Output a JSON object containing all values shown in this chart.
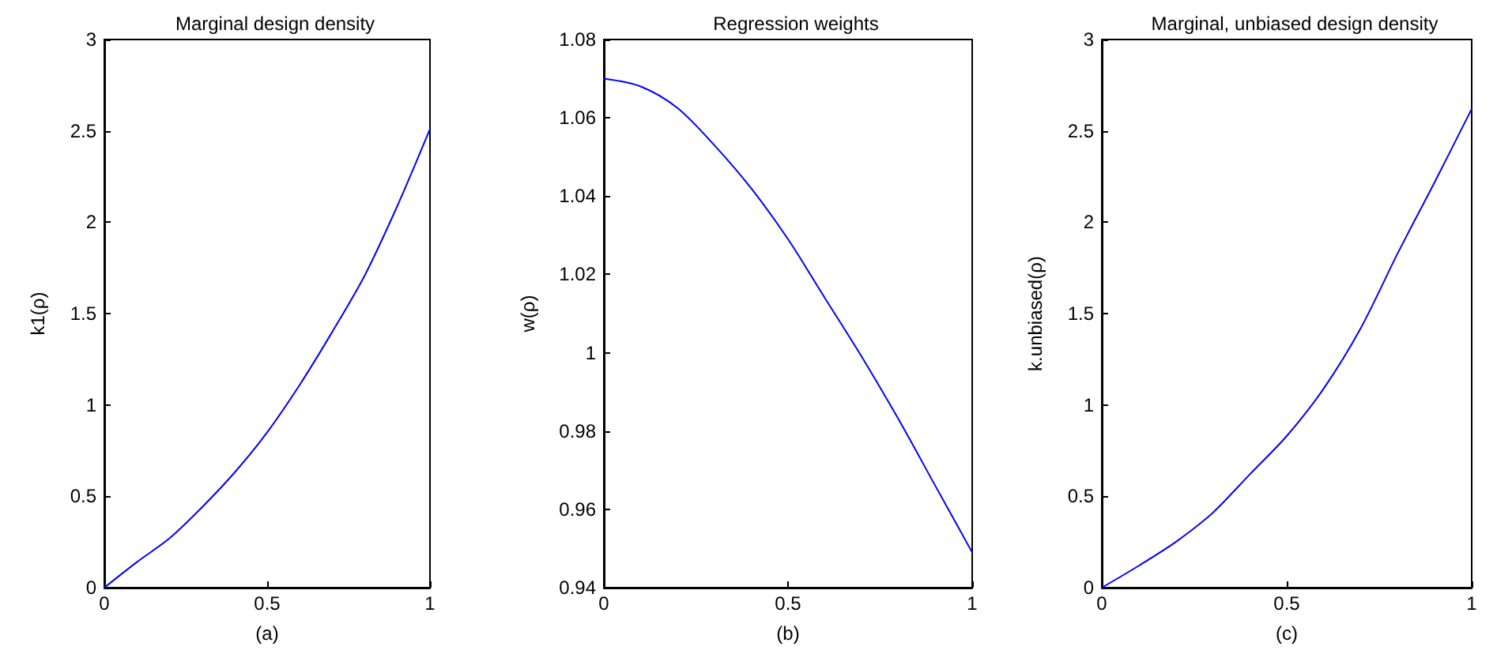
{
  "chart_data": [
    {
      "type": "line",
      "title": "Marginal design density",
      "xlabel": "(a)",
      "ylabel": "k1(ρ)",
      "x": [
        0,
        0.1,
        0.2,
        0.3,
        0.4,
        0.5,
        0.6,
        0.7,
        0.8,
        0.9,
        1
      ],
      "series": [
        {
          "color": "#0000ff",
          "values": [
            0,
            0.14,
            0.27,
            0.44,
            0.63,
            0.85,
            1.11,
            1.4,
            1.71,
            2.09,
            2.51
          ]
        }
      ],
      "xlim": [
        0,
        1
      ],
      "xticks": [
        0,
        0.5,
        1
      ],
      "ylim": [
        0,
        3
      ],
      "yticks": [
        0,
        0.5,
        1,
        1.5,
        2,
        2.5,
        3
      ]
    },
    {
      "type": "line",
      "title": "Regression weights",
      "xlabel": "(b)",
      "ylabel": "w(ρ)",
      "x": [
        0,
        0.1,
        0.2,
        0.3,
        0.4,
        0.5,
        0.6,
        0.7,
        0.8,
        0.9,
        1
      ],
      "series": [
        {
          "color": "#0000ff",
          "values": [
            1.07,
            1.068,
            1.0625,
            1.053,
            1.042,
            1.029,
            1.014,
            0.999,
            0.983,
            0.966,
            0.949
          ]
        }
      ],
      "xlim": [
        0,
        1
      ],
      "xticks": [
        0,
        0.5,
        1
      ],
      "ylim": [
        0.94,
        1.08
      ],
      "yticks": [
        0.94,
        0.96,
        0.98,
        1,
        1.02,
        1.04,
        1.06,
        1.08
      ]
    },
    {
      "type": "line",
      "title": "Marginal, unbiased design density",
      "xlabel": "(c)",
      "ylabel": "k.unbiased(ρ)",
      "x": [
        0,
        0.1,
        0.2,
        0.3,
        0.4,
        0.5,
        0.6,
        0.7,
        0.8,
        0.9,
        1
      ],
      "series": [
        {
          "color": "#0000ff",
          "values": [
            0,
            0.12,
            0.25,
            0.41,
            0.62,
            0.83,
            1.09,
            1.42,
            1.83,
            2.22,
            2.62
          ]
        }
      ],
      "xlim": [
        0,
        1
      ],
      "xticks": [
        0,
        0.5,
        1
      ],
      "ylim": [
        0,
        3
      ],
      "yticks": [
        0,
        0.5,
        1,
        1.5,
        2,
        2.5,
        3
      ]
    }
  ]
}
